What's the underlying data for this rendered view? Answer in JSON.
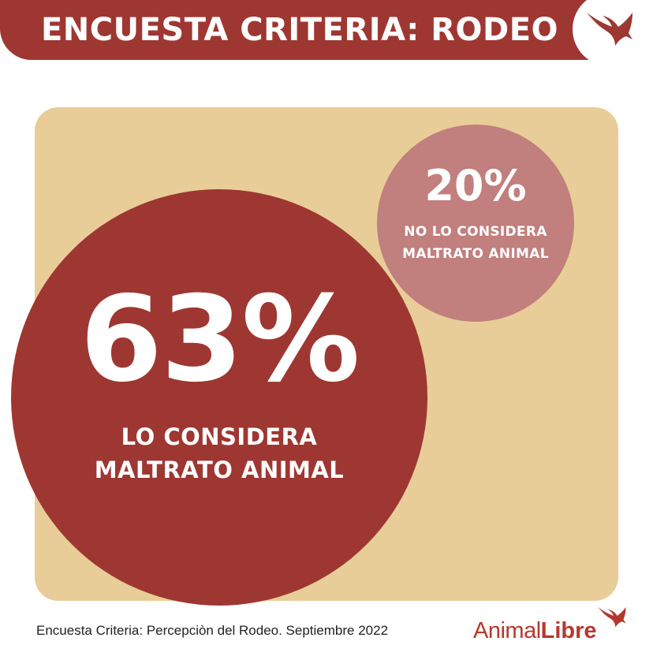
{
  "header": {
    "title": "ENCUESTA CRITERIA: RODEO",
    "logo_icon": "swallow-bird-icon"
  },
  "colors": {
    "primary": "#9e3732",
    "secondary": "#c17f7d",
    "panel": "#e8cd98"
  },
  "chart_data": {
    "type": "bubble",
    "title": "ENCUESTA CRITERIA: RODEO",
    "series": [
      {
        "label": "63%",
        "value": 63,
        "caption": [
          "LO CONSIDERA",
          "MALTRATO ANIMAL"
        ]
      },
      {
        "label": "20%",
        "value": 20,
        "caption": [
          "NO LO CONSIDERA",
          "MALTRATO ANIMAL"
        ]
      }
    ]
  },
  "footer": {
    "source": "Encuesta Criteria: Percepciòn del Rodeo. Septiembre 2022",
    "brand_part1": "Animal",
    "brand_part2": "Libre",
    "brand_icon": "swallow-bird-icon"
  }
}
